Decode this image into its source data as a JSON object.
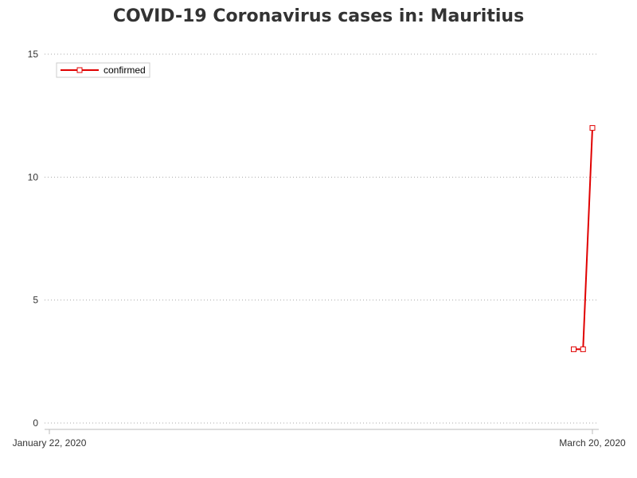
{
  "chart_data": {
    "type": "line",
    "title": "COVID-19 Coronavirus cases in: Mauritius",
    "xlabel": "",
    "ylabel": "",
    "x_tick_labels": [
      "January 22, 2020",
      "March 20, 2020"
    ],
    "x": [
      "2020-03-18",
      "2020-03-19",
      "2020-03-20"
    ],
    "xlim": [
      "2020-01-22",
      "2020-03-20"
    ],
    "ylim": [
      0,
      15
    ],
    "y_ticks": [
      0,
      5,
      10,
      15
    ],
    "grid": "horizontal dotted",
    "legend_position": "top-left",
    "series": [
      {
        "name": "confirmed",
        "color": "#e00000",
        "marker": "square",
        "values": [
          3,
          3,
          12
        ]
      }
    ]
  }
}
